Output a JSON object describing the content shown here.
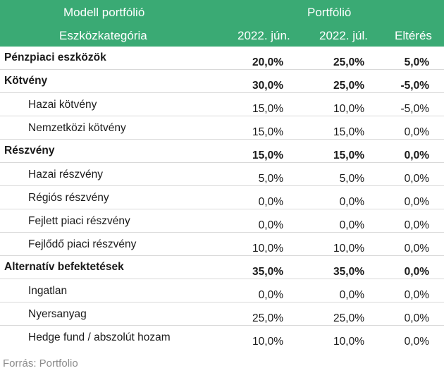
{
  "header": {
    "model_title": "Modell portfólió",
    "category_label": "Eszközkategória",
    "portfolio_title": "Portfólió",
    "col_jun": "2022. jún.",
    "col_jul": "2022. júl.",
    "col_diff": "Eltérés"
  },
  "rows": [
    {
      "label": "Pénzpiaci eszközök",
      "jun": "20,0%",
      "jul": "25,0%",
      "diff": "5,0%",
      "level": "main"
    },
    {
      "label": "Kötvény",
      "jun": "30,0%",
      "jul": "25,0%",
      "diff": "-5,0%",
      "level": "main"
    },
    {
      "label": "Hazai kötvény",
      "jun": "15,0%",
      "jul": "10,0%",
      "diff": "-5,0%",
      "level": "sub"
    },
    {
      "label": "Nemzetközi kötvény",
      "jun": "15,0%",
      "jul": "15,0%",
      "diff": "0,0%",
      "level": "sub"
    },
    {
      "label": "Részvény",
      "jun": "15,0%",
      "jul": "15,0%",
      "diff": "0,0%",
      "level": "main"
    },
    {
      "label": "Hazai részvény",
      "jun": "5,0%",
      "jul": "5,0%",
      "diff": "0,0%",
      "level": "sub"
    },
    {
      "label": "Régiós részvény",
      "jun": "0,0%",
      "jul": "0,0%",
      "diff": "0,0%",
      "level": "sub"
    },
    {
      "label": "Fejlett piaci részvény",
      "jun": "0,0%",
      "jul": "0,0%",
      "diff": "0,0%",
      "level": "sub"
    },
    {
      "label": "Fejlődő piaci részvény",
      "jun": "10,0%",
      "jul": "10,0%",
      "diff": "0,0%",
      "level": "sub"
    },
    {
      "label": "Alternatív befektetések",
      "jun": "35,0%",
      "jul": "35,0%",
      "diff": "0,0%",
      "level": "main"
    },
    {
      "label": "Ingatlan",
      "jun": "0,0%",
      "jul": "0,0%",
      "diff": "0,0%",
      "level": "sub"
    },
    {
      "label": "Nyersanyag",
      "jun": "25,0%",
      "jul": "25,0%",
      "diff": "0,0%",
      "level": "sub"
    },
    {
      "label": "Hedge fund / abszolút hozam",
      "jun": "10,0%",
      "jul": "10,0%",
      "diff": "0,0%",
      "level": "sub"
    }
  ],
  "source": "Forrás: Portfolio",
  "colors": {
    "header_bg": "#3aaa74",
    "header_text": "#ffffff",
    "source_text": "#8c8c8c"
  }
}
